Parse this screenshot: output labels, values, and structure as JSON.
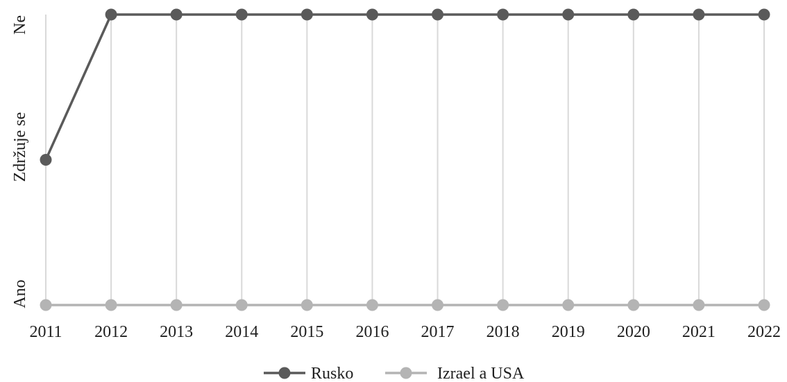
{
  "chart_data": {
    "type": "line",
    "x": [
      "2011",
      "2012",
      "2013",
      "2014",
      "2015",
      "2016",
      "2017",
      "2018",
      "2019",
      "2020",
      "2021",
      "2022"
    ],
    "y_categories": [
      "Ano",
      "Zdržuje se",
      "Ne"
    ],
    "series": [
      {
        "name": "Rusko",
        "color": "#5a5a5a",
        "values": [
          "Zdržuje se",
          "Ne",
          "Ne",
          "Ne",
          "Ne",
          "Ne",
          "Ne",
          "Ne",
          "Ne",
          "Ne",
          "Ne",
          "Ne"
        ]
      },
      {
        "name": "Izrael a USA",
        "color": "#b4b4b4",
        "values": [
          "Ano",
          "Ano",
          "Ano",
          "Ano",
          "Ano",
          "Ano",
          "Ano",
          "Ano",
          "Ano",
          "Ano",
          "Ano",
          "Ano"
        ]
      }
    ],
    "grid": "vertical",
    "gridColor": "#d9d9d9",
    "legend_position": "bottom"
  }
}
